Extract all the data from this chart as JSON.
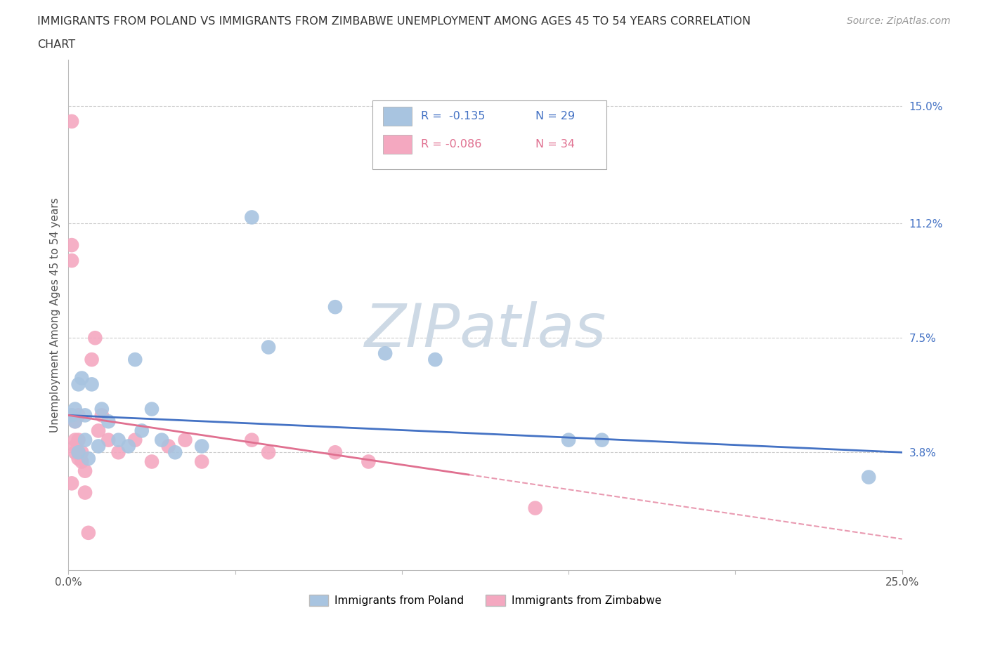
{
  "title_line1": "IMMIGRANTS FROM POLAND VS IMMIGRANTS FROM ZIMBABWE UNEMPLOYMENT AMONG AGES 45 TO 54 YEARS CORRELATION",
  "title_line2": "CHART",
  "source": "Source: ZipAtlas.com",
  "ylabel": "Unemployment Among Ages 45 to 54 years",
  "xlim": [
    0.0,
    0.25
  ],
  "ylim": [
    0.0,
    0.165
  ],
  "xticks": [
    0.0,
    0.05,
    0.1,
    0.15,
    0.2,
    0.25
  ],
  "xticklabels": [
    "0.0%",
    "",
    "",
    "",
    "",
    "25.0%"
  ],
  "ytick_positions": [
    0.038,
    0.075,
    0.112,
    0.15
  ],
  "ytick_labels": [
    "3.8%",
    "7.5%",
    "11.2%",
    "15.0%"
  ],
  "gridline_y": [
    0.038,
    0.075,
    0.112,
    0.15
  ],
  "poland_color": "#a8c4e0",
  "zimbabwe_color": "#f4a8c0",
  "poland_line_color": "#4472c4",
  "zimbabwe_line_color": "#e07090",
  "legend_r_poland": "R =  -0.135",
  "legend_n_poland": "N = 29",
  "legend_r_zimbabwe": "R = -0.086",
  "legend_n_zimbabwe": "N = 34",
  "poland_x": [
    0.001,
    0.002,
    0.002,
    0.003,
    0.003,
    0.004,
    0.005,
    0.005,
    0.006,
    0.007,
    0.009,
    0.01,
    0.012,
    0.015,
    0.018,
    0.02,
    0.022,
    0.025,
    0.028,
    0.032,
    0.04,
    0.055,
    0.06,
    0.08,
    0.095,
    0.11,
    0.15,
    0.16,
    0.24
  ],
  "poland_y": [
    0.05,
    0.048,
    0.052,
    0.038,
    0.06,
    0.062,
    0.042,
    0.05,
    0.036,
    0.06,
    0.04,
    0.052,
    0.048,
    0.042,
    0.04,
    0.068,
    0.045,
    0.052,
    0.042,
    0.038,
    0.04,
    0.114,
    0.072,
    0.085,
    0.07,
    0.068,
    0.042,
    0.042,
    0.03
  ],
  "zimbabwe_x": [
    0.001,
    0.001,
    0.001,
    0.001,
    0.001,
    0.002,
    0.002,
    0.002,
    0.002,
    0.003,
    0.003,
    0.003,
    0.003,
    0.004,
    0.004,
    0.005,
    0.005,
    0.006,
    0.007,
    0.008,
    0.009,
    0.01,
    0.012,
    0.015,
    0.02,
    0.025,
    0.03,
    0.035,
    0.04,
    0.055,
    0.06,
    0.08,
    0.09,
    0.14
  ],
  "zimbabwe_y": [
    0.145,
    0.105,
    0.1,
    0.05,
    0.028,
    0.048,
    0.042,
    0.04,
    0.038,
    0.05,
    0.042,
    0.038,
    0.036,
    0.038,
    0.035,
    0.032,
    0.025,
    0.012,
    0.068,
    0.075,
    0.045,
    0.05,
    0.042,
    0.038,
    0.042,
    0.035,
    0.04,
    0.042,
    0.035,
    0.042,
    0.038,
    0.038,
    0.035,
    0.02
  ],
  "background_color": "#ffffff",
  "plot_bg_color": "#ffffff",
  "watermark": "ZIPatlas",
  "watermark_color": "#cdd9e5"
}
